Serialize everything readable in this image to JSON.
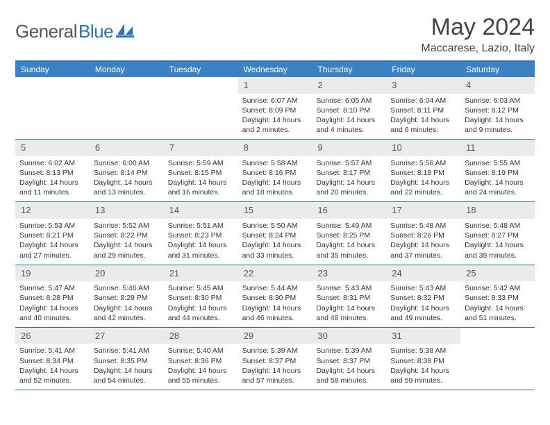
{
  "logo": {
    "text_gray": "General",
    "text_blue": "Blue"
  },
  "title": "May 2024",
  "location": "Maccarese, Lazio, Italy",
  "colors": {
    "header_bg": "#3b82c4",
    "border": "#2c72b8",
    "daynum_bg": "#ebebeb",
    "text": "#333333",
    "logo_gray": "#555555",
    "logo_blue": "#2c72b8"
  },
  "day_names": [
    "Sunday",
    "Monday",
    "Tuesday",
    "Wednesday",
    "Thursday",
    "Friday",
    "Saturday"
  ],
  "weeks": [
    [
      {
        "blank": true
      },
      {
        "blank": true
      },
      {
        "blank": true
      },
      {
        "n": "1",
        "sr": "6:07 AM",
        "ss": "8:09 PM",
        "dl": "14 hours and 2 minutes."
      },
      {
        "n": "2",
        "sr": "6:05 AM",
        "ss": "8:10 PM",
        "dl": "14 hours and 4 minutes."
      },
      {
        "n": "3",
        "sr": "6:04 AM",
        "ss": "8:11 PM",
        "dl": "14 hours and 6 minutes."
      },
      {
        "n": "4",
        "sr": "6:03 AM",
        "ss": "8:12 PM",
        "dl": "14 hours and 9 minutes."
      }
    ],
    [
      {
        "n": "5",
        "sr": "6:02 AM",
        "ss": "8:13 PM",
        "dl": "14 hours and 11 minutes."
      },
      {
        "n": "6",
        "sr": "6:00 AM",
        "ss": "8:14 PM",
        "dl": "14 hours and 13 minutes."
      },
      {
        "n": "7",
        "sr": "5:59 AM",
        "ss": "8:15 PM",
        "dl": "14 hours and 16 minutes."
      },
      {
        "n": "8",
        "sr": "5:58 AM",
        "ss": "8:16 PM",
        "dl": "14 hours and 18 minutes."
      },
      {
        "n": "9",
        "sr": "5:57 AM",
        "ss": "8:17 PM",
        "dl": "14 hours and 20 minutes."
      },
      {
        "n": "10",
        "sr": "5:56 AM",
        "ss": "8:18 PM",
        "dl": "14 hours and 22 minutes."
      },
      {
        "n": "11",
        "sr": "5:55 AM",
        "ss": "8:19 PM",
        "dl": "14 hours and 24 minutes."
      }
    ],
    [
      {
        "n": "12",
        "sr": "5:53 AM",
        "ss": "8:21 PM",
        "dl": "14 hours and 27 minutes."
      },
      {
        "n": "13",
        "sr": "5:52 AM",
        "ss": "8:22 PM",
        "dl": "14 hours and 29 minutes."
      },
      {
        "n": "14",
        "sr": "5:51 AM",
        "ss": "8:23 PM",
        "dl": "14 hours and 31 minutes."
      },
      {
        "n": "15",
        "sr": "5:50 AM",
        "ss": "8:24 PM",
        "dl": "14 hours and 33 minutes."
      },
      {
        "n": "16",
        "sr": "5:49 AM",
        "ss": "8:25 PM",
        "dl": "14 hours and 35 minutes."
      },
      {
        "n": "17",
        "sr": "5:48 AM",
        "ss": "8:26 PM",
        "dl": "14 hours and 37 minutes."
      },
      {
        "n": "18",
        "sr": "5:48 AM",
        "ss": "8:27 PM",
        "dl": "14 hours and 39 minutes."
      }
    ],
    [
      {
        "n": "19",
        "sr": "5:47 AM",
        "ss": "8:28 PM",
        "dl": "14 hours and 40 minutes."
      },
      {
        "n": "20",
        "sr": "5:46 AM",
        "ss": "8:29 PM",
        "dl": "14 hours and 42 minutes."
      },
      {
        "n": "21",
        "sr": "5:45 AM",
        "ss": "8:30 PM",
        "dl": "14 hours and 44 minutes."
      },
      {
        "n": "22",
        "sr": "5:44 AM",
        "ss": "8:30 PM",
        "dl": "14 hours and 46 minutes."
      },
      {
        "n": "23",
        "sr": "5:43 AM",
        "ss": "8:31 PM",
        "dl": "14 hours and 48 minutes."
      },
      {
        "n": "24",
        "sr": "5:43 AM",
        "ss": "8:32 PM",
        "dl": "14 hours and 49 minutes."
      },
      {
        "n": "25",
        "sr": "5:42 AM",
        "ss": "8:33 PM",
        "dl": "14 hours and 51 minutes."
      }
    ],
    [
      {
        "n": "26",
        "sr": "5:41 AM",
        "ss": "8:34 PM",
        "dl": "14 hours and 52 minutes."
      },
      {
        "n": "27",
        "sr": "5:41 AM",
        "ss": "8:35 PM",
        "dl": "14 hours and 54 minutes."
      },
      {
        "n": "28",
        "sr": "5:40 AM",
        "ss": "8:36 PM",
        "dl": "14 hours and 55 minutes."
      },
      {
        "n": "29",
        "sr": "5:39 AM",
        "ss": "8:37 PM",
        "dl": "14 hours and 57 minutes."
      },
      {
        "n": "30",
        "sr": "5:39 AM",
        "ss": "8:37 PM",
        "dl": "14 hours and 58 minutes."
      },
      {
        "n": "31",
        "sr": "5:38 AM",
        "ss": "8:38 PM",
        "dl": "14 hours and 59 minutes."
      },
      {
        "blank": true
      }
    ]
  ],
  "labels": {
    "sunrise": "Sunrise: ",
    "sunset": "Sunset: ",
    "daylight": "Daylight: "
  }
}
